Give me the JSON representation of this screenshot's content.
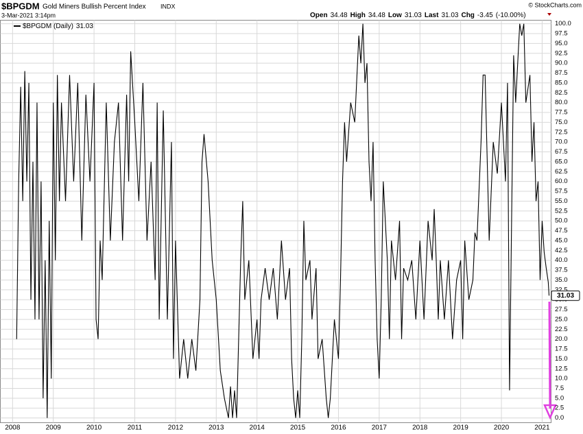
{
  "chart_data": {
    "type": "line",
    "title": "$BPGDM",
    "subtitle": "Gold Miners Bullish Percent Index",
    "exchange": "INDX",
    "timestamp": "3-Mar-2021 3:14pm",
    "copyright": "© StockCharts.com",
    "quote": {
      "open_label": "Open",
      "open": 34.48,
      "high_label": "High",
      "high": 34.48,
      "low_label": "Low",
      "low": 31.03,
      "last_label": "Last",
      "last": 31.03,
      "chg_label": "Chg",
      "chg": -3.45,
      "chg_pct": "(-10.00%)"
    },
    "x": [
      2008.1,
      2008.15,
      2008.2,
      2008.25,
      2008.3,
      2008.35,
      2008.4,
      2008.45,
      2008.5,
      2008.55,
      2008.6,
      2008.65,
      2008.7,
      2008.75,
      2008.8,
      2008.85,
      2008.9,
      2008.95,
      2009.0,
      2009.05,
      2009.1,
      2009.15,
      2009.2,
      2009.3,
      2009.4,
      2009.5,
      2009.6,
      2009.7,
      2009.8,
      2009.9,
      2010.0,
      2010.05,
      2010.1,
      2010.15,
      2010.2,
      2010.3,
      2010.4,
      2010.5,
      2010.6,
      2010.7,
      2010.8,
      2010.85,
      2010.9,
      2011.0,
      2011.1,
      2011.2,
      2011.3,
      2011.4,
      2011.5,
      2011.55,
      2011.6,
      2011.7,
      2011.8,
      2011.9,
      2011.95,
      2012.0,
      2012.1,
      2012.2,
      2012.3,
      2012.4,
      2012.5,
      2012.6,
      2012.65,
      2012.7,
      2012.8,
      2012.9,
      2013.0,
      2013.1,
      2013.2,
      2013.3,
      2013.35,
      2013.4,
      2013.45,
      2013.5,
      2013.6,
      2013.65,
      2013.7,
      2013.8,
      2013.9,
      2014.0,
      2014.05,
      2014.1,
      2014.2,
      2014.3,
      2014.4,
      2014.5,
      2014.6,
      2014.7,
      2014.8,
      2014.85,
      2014.9,
      2014.95,
      2015.0,
      2015.05,
      2015.1,
      2015.15,
      2015.2,
      2015.3,
      2015.35,
      2015.45,
      2015.5,
      2015.6,
      2015.7,
      2015.75,
      2015.8,
      2015.9,
      2016.0,
      2016.05,
      2016.1,
      2016.15,
      2016.2,
      2016.3,
      2016.4,
      2016.5,
      2016.55,
      2016.6,
      2016.65,
      2016.7,
      2016.75,
      2016.8,
      2016.85,
      2016.9,
      2016.95,
      2017.0,
      2017.05,
      2017.1,
      2017.2,
      2017.25,
      2017.3,
      2017.4,
      2017.5,
      2017.55,
      2017.6,
      2017.7,
      2017.8,
      2017.9,
      2018.0,
      2018.1,
      2018.2,
      2018.3,
      2018.35,
      2018.4,
      2018.45,
      2018.5,
      2018.6,
      2018.7,
      2018.8,
      2018.9,
      2019.0,
      2019.05,
      2019.1,
      2019.2,
      2019.3,
      2019.35,
      2019.4,
      2019.5,
      2019.55,
      2019.6,
      2019.7,
      2019.8,
      2019.9,
      2020.0,
      2020.1,
      2020.15,
      2020.2,
      2020.25,
      2020.3,
      2020.35,
      2020.45,
      2020.5,
      2020.55,
      2020.6,
      2020.7,
      2020.75,
      2020.8,
      2020.85,
      2020.9,
      2020.95,
      2021.0,
      2021.05,
      2021.1,
      2021.15,
      2021.17
    ],
    "series": [
      {
        "name": "$BPGDM (Daily)",
        "color": "#000000",
        "values": [
          20,
          60,
          84,
          55,
          88,
          60,
          85,
          30,
          65,
          25,
          80,
          25,
          60,
          5,
          40,
          0,
          50,
          10,
          80,
          40,
          87,
          55,
          80,
          55,
          87,
          60,
          85,
          45,
          82,
          60,
          85,
          25,
          20,
          45,
          35,
          80,
          45,
          70,
          80,
          45,
          82,
          60,
          93,
          75,
          55,
          85,
          45,
          65,
          35,
          80,
          25,
          78,
          25,
          70,
          15,
          45,
          10,
          20,
          10,
          20,
          12,
          30,
          65,
          72,
          60,
          40,
          30,
          12,
          5,
          0,
          8,
          0,
          7,
          0,
          40,
          55,
          30,
          40,
          15,
          25,
          15,
          30,
          38,
          30,
          38,
          25,
          45,
          30,
          38,
          15,
          5,
          0,
          7,
          0,
          20,
          50,
          35,
          40,
          25,
          38,
          15,
          20,
          5,
          0,
          5,
          25,
          15,
          35,
          60,
          75,
          65,
          80,
          75,
          97,
          90,
          100,
          85,
          90,
          65,
          55,
          70,
          40,
          20,
          10,
          30,
          60,
          40,
          20,
          45,
          35,
          50,
          20,
          38,
          35,
          40,
          25,
          45,
          25,
          50,
          40,
          53,
          40,
          25,
          40,
          25,
          40,
          20,
          35,
          40,
          20,
          45,
          30,
          35,
          47,
          45,
          70,
          87,
          87,
          45,
          70,
          62,
          80,
          60,
          85,
          7,
          50,
          92,
          80,
          100,
          97,
          100,
          80,
          87,
          65,
          75,
          55,
          60,
          35,
          50,
          42,
          38,
          34.48,
          31.03
        ]
      }
    ],
    "xlim": [
      2007.7,
      2021.22
    ],
    "xticks": [
      2008,
      2009,
      2010,
      2011,
      2012,
      2013,
      2014,
      2015,
      2016,
      2017,
      2018,
      2019,
      2020,
      2021
    ],
    "ylim": [
      -1.2,
      100.9
    ],
    "yticks": [
      {
        "value": 0,
        "label": "0.0"
      },
      2.5,
      {
        "value": 5,
        "label": "5.0"
      },
      7.5,
      {
        "value": 10,
        "label": "10.0"
      },
      12.5,
      {
        "value": 15,
        "label": "15.0"
      },
      17.5,
      {
        "value": 20,
        "label": "20.0"
      },
      22.5,
      {
        "value": 25,
        "label": "25.0"
      },
      27.5,
      {
        "value": 30,
        "label": "30.0"
      },
      32.5,
      {
        "value": 35,
        "label": "35.0"
      },
      37.5,
      {
        "value": 40,
        "label": "40.0"
      },
      42.5,
      {
        "value": 45,
        "label": "45.0"
      },
      47.5,
      {
        "value": 50,
        "label": "50.0"
      },
      52.5,
      {
        "value": 55,
        "label": "55.0"
      },
      57.5,
      {
        "value": 60,
        "label": "60.0"
      },
      62.5,
      {
        "value": 65,
        "label": "65.0"
      },
      67.5,
      {
        "value": 70,
        "label": "70.0"
      },
      72.5,
      {
        "value": 75,
        "label": "75.0"
      },
      77.5,
      {
        "value": 80,
        "label": "80.0"
      },
      82.5,
      {
        "value": 85,
        "label": "85.0"
      },
      87.5,
      {
        "value": 90,
        "label": "90.0"
      },
      92.5,
      {
        "value": 95,
        "label": "95.0"
      },
      97.5,
      {
        "value": 100,
        "label": "100.0"
      }
    ],
    "grid": true
  }
}
